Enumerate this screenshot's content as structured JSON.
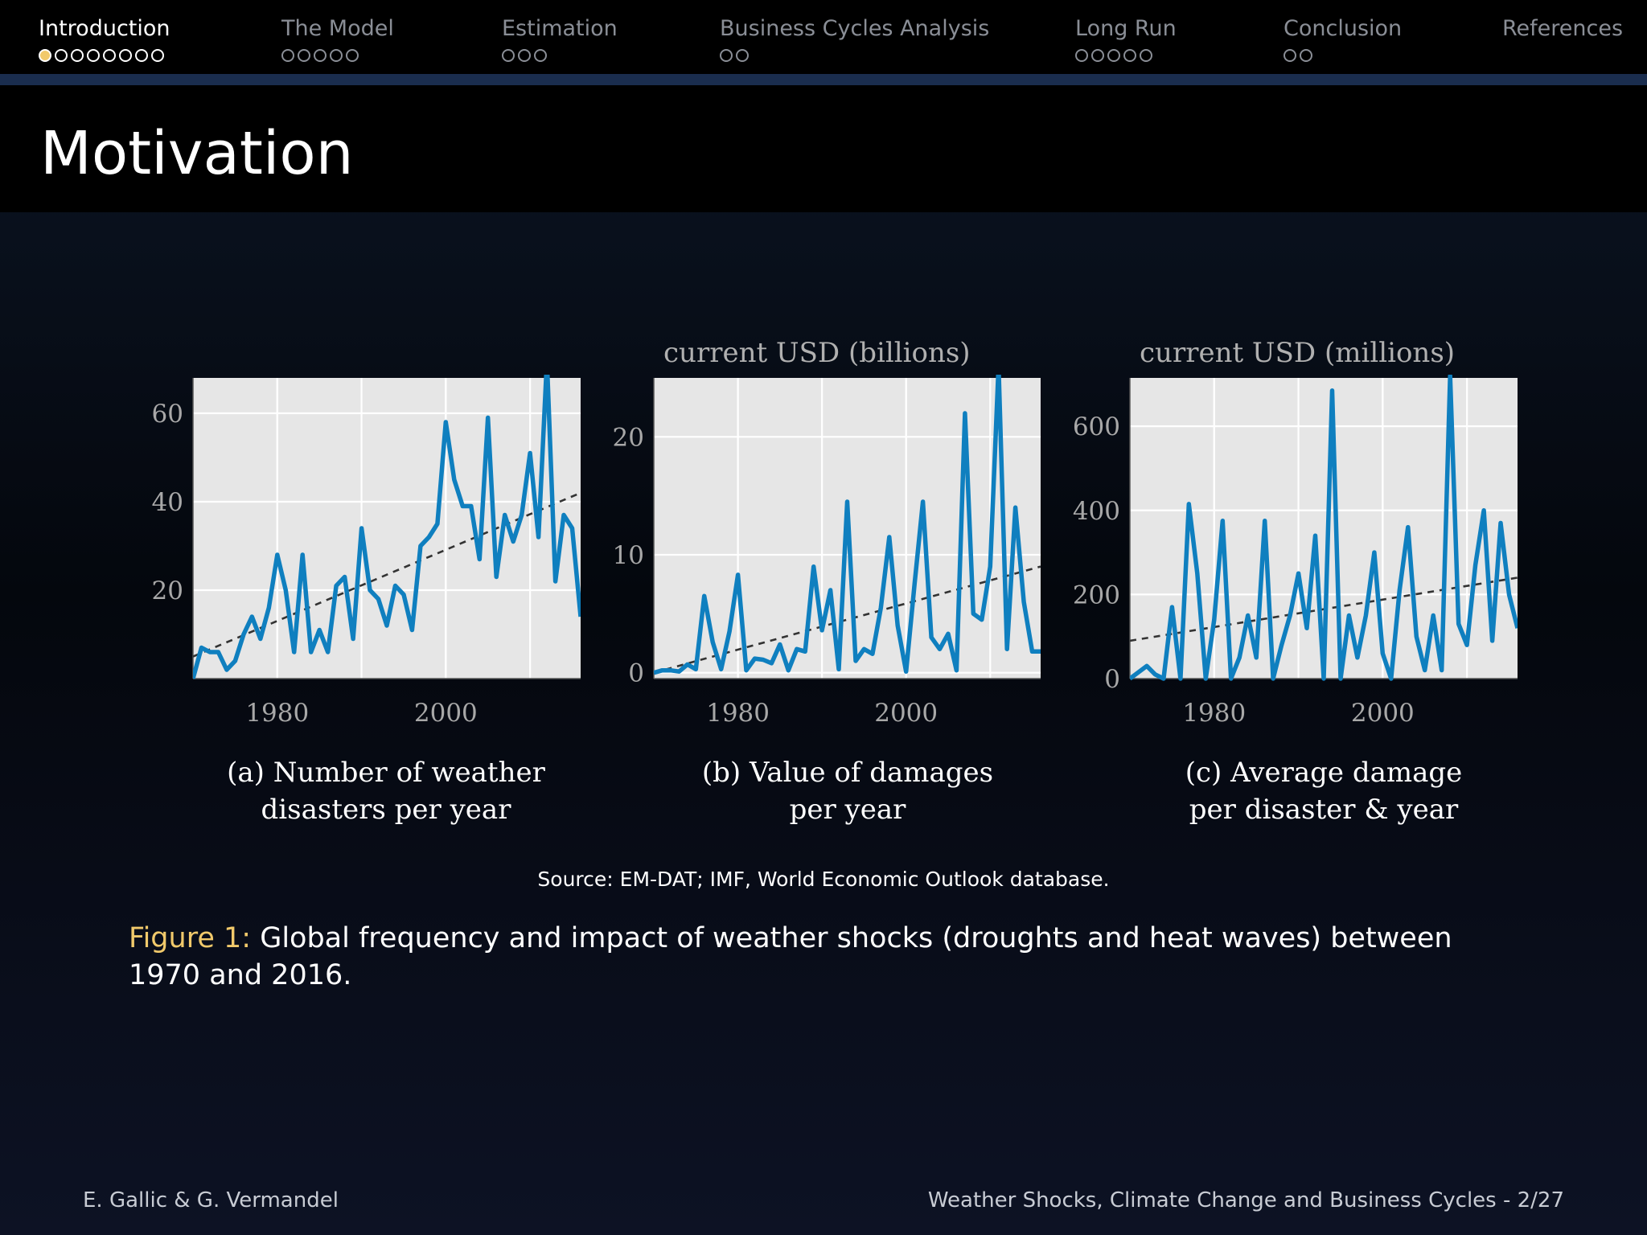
{
  "nav": {
    "sections": [
      {
        "label": "Introduction",
        "dots": 8,
        "active": true,
        "current_dot": 0
      },
      {
        "label": "The Model",
        "dots": 5
      },
      {
        "label": "Estimation",
        "dots": 3
      },
      {
        "label": "Business Cycles Analysis",
        "dots": 2
      },
      {
        "label": "Long Run",
        "dots": 5
      },
      {
        "label": "Conclusion",
        "dots": 2
      },
      {
        "label": "References",
        "dots": 0
      }
    ]
  },
  "slide": {
    "title": "Motivation",
    "source_note": "Source: EM-DAT; IMF, World Economic Outlook database.",
    "figure_label": "Figure 1:",
    "figure_caption": "Global frequency and impact of weather shocks (droughts and heat waves) between 1970 and 2016."
  },
  "footer": {
    "authors": "E. Gallic & G. Vermandel",
    "talk_title": "Weather Shocks, Climate Change and Business Cycles - 2/27"
  },
  "colors": {
    "accent": "#f1c96b",
    "series": "#0f7fbf",
    "trend": "#333333",
    "plot_background": "#e6e6e6",
    "nav_background": "#000000",
    "nav_rule": "#1a2d4e"
  },
  "chart_data": [
    {
      "type": "line",
      "caption": [
        "(a) Number of weather",
        "disasters per year"
      ],
      "ylabel": "",
      "x_ticks": [
        1980,
        2000
      ],
      "y_ticks": [
        20,
        40,
        60
      ],
      "xlim": [
        1970,
        2016
      ],
      "ylim": [
        0,
        68
      ],
      "x": [
        1970,
        1971,
        1972,
        1973,
        1974,
        1975,
        1976,
        1977,
        1978,
        1979,
        1980,
        1981,
        1982,
        1983,
        1984,
        1985,
        1986,
        1987,
        1988,
        1989,
        1990,
        1991,
        1992,
        1993,
        1994,
        1995,
        1996,
        1997,
        1998,
        1999,
        2000,
        2001,
        2002,
        2003,
        2004,
        2005,
        2006,
        2007,
        2008,
        2009,
        2010,
        2011,
        2012,
        2013,
        2014,
        2015,
        2016
      ],
      "series": [
        {
          "values": [
            0,
            7,
            6,
            6,
            2,
            4,
            10,
            14,
            9,
            16,
            28,
            20,
            6,
            28,
            6,
            11,
            6,
            21,
            23,
            9,
            34,
            20,
            18,
            12,
            21,
            19,
            11,
            30,
            32,
            35,
            58,
            45,
            39,
            39,
            27,
            59,
            23,
            37,
            31,
            37,
            51,
            32,
            72,
            22,
            37,
            34,
            14
          ]
        }
      ],
      "trend": [
        5,
        42
      ]
    },
    {
      "type": "line",
      "caption": [
        "(b) Value of damages",
        "per year"
      ],
      "ylabel": "current USD (billions)",
      "x_ticks": [
        1980,
        2000
      ],
      "y_ticks": [
        0,
        10,
        20
      ],
      "xlim": [
        1970,
        2016
      ],
      "ylim": [
        -0.5,
        25
      ],
      "x": [
        1970,
        1971,
        1972,
        1973,
        1974,
        1975,
        1976,
        1977,
        1978,
        1979,
        1980,
        1981,
        1982,
        1983,
        1984,
        1985,
        1986,
        1987,
        1988,
        1989,
        1990,
        1991,
        1992,
        1993,
        1994,
        1995,
        1996,
        1997,
        1998,
        1999,
        2000,
        2001,
        2002,
        2003,
        2004,
        2005,
        2006,
        2007,
        2008,
        2009,
        2010,
        2011,
        2012,
        2013,
        2014,
        2015,
        2016
      ],
      "series": [
        {
          "values": [
            0,
            0.2,
            0.2,
            0.1,
            0.7,
            0.3,
            6.5,
            2.6,
            0.3,
            3.5,
            8.3,
            0.2,
            1.2,
            1.1,
            0.8,
            2.4,
            0.2,
            2,
            1.8,
            9,
            3.6,
            7,
            0.3,
            14.5,
            1,
            2,
            1.6,
            5.5,
            11.5,
            4,
            0.1,
            7.5,
            14.5,
            3,
            2,
            3.3,
            0.2,
            22,
            5,
            4.5,
            9,
            26,
            2,
            14,
            6,
            1.8,
            1.8
          ]
        }
      ],
      "trend": [
        0,
        9
      ]
    },
    {
      "type": "line",
      "caption": [
        "(c) Average damage",
        "per disaster & year"
      ],
      "ylabel": "current USD (millions)",
      "x_ticks": [
        1980,
        2000
      ],
      "y_ticks": [
        0,
        200,
        400,
        600
      ],
      "xlim": [
        1970,
        2016
      ],
      "ylim": [
        0,
        715
      ],
      "x": [
        1970,
        1971,
        1972,
        1973,
        1974,
        1975,
        1976,
        1977,
        1978,
        1979,
        1980,
        1981,
        1982,
        1983,
        1984,
        1985,
        1986,
        1987,
        1988,
        1989,
        1990,
        1991,
        1992,
        1993,
        1994,
        1995,
        1996,
        1997,
        1998,
        1999,
        2000,
        2001,
        2002,
        2003,
        2004,
        2005,
        2006,
        2007,
        2008,
        2009,
        2010,
        2011,
        2012,
        2013,
        2014,
        2015,
        2016
      ],
      "series": [
        {
          "values": [
            0,
            15,
            30,
            10,
            0,
            170,
            0,
            415,
            250,
            0,
            140,
            375,
            0,
            50,
            150,
            50,
            375,
            0,
            80,
            150,
            250,
            120,
            340,
            0,
            685,
            0,
            150,
            50,
            150,
            300,
            60,
            0,
            210,
            360,
            100,
            20,
            150,
            20,
            720,
            130,
            80,
            270,
            400,
            90,
            370,
            200,
            120
          ]
        }
      ],
      "trend": [
        90,
        240
      ]
    }
  ]
}
